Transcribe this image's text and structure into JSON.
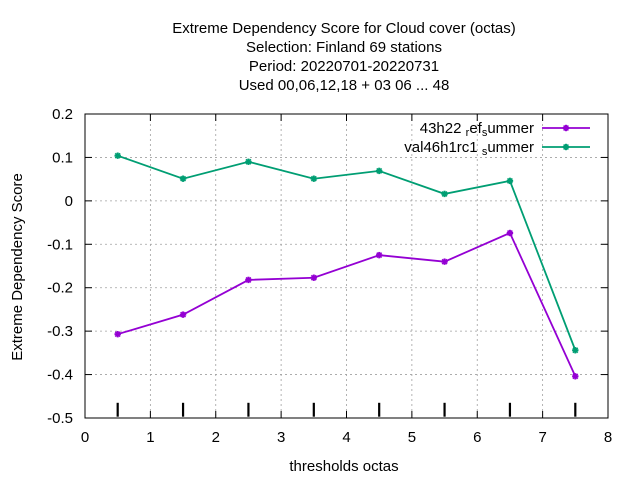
{
  "chart_data": {
    "type": "line",
    "title_lines": [
      "Extreme Dependency Score  for Cloud cover (octas)",
      "Selection: Finland     69 stations",
      "Period: 20220701-20220731",
      "Used  00,06,12,18  + 03 06 ... 48"
    ],
    "xlabel": "thresholds octas",
    "ylabel": "Extreme Dependency Score",
    "xlim": [
      0,
      8
    ],
    "ylim": [
      -0.5,
      0.2
    ],
    "x_ticks": [
      "0",
      "1",
      "2",
      "3",
      "4",
      "5",
      "6",
      "7",
      "8"
    ],
    "y_ticks": [
      "-0.5",
      "-0.4",
      "-0.3",
      "-0.2",
      "-0.1",
      "0",
      "0.1",
      "0.2"
    ],
    "grid": true,
    "legend_position": "top-right",
    "threshold_markers_x": [
      0.5,
      1.5,
      2.5,
      3.5,
      4.5,
      5.5,
      6.5,
      7.5
    ],
    "x": [
      0.5,
      1.5,
      2.5,
      3.5,
      4.5,
      5.5,
      6.5,
      7.5
    ],
    "series": [
      {
        "name": "43h22 ref summer",
        "legend_parts": [
          {
            "text": "43h22 ",
            "sub": false
          },
          {
            "text": "r",
            "sub": true
          },
          {
            "text": "ef",
            "sub": false
          },
          {
            "text": "s",
            "sub": true
          },
          {
            "text": "ummer",
            "sub": false
          }
        ],
        "color": "#9400d3",
        "values": [
          -0.307,
          -0.262,
          -0.182,
          -0.177,
          -0.125,
          -0.14,
          -0.074,
          -0.404
        ]
      },
      {
        "name": "val46h1rc1 summer",
        "legend_parts": [
          {
            "text": "val46h1rc1 ",
            "sub": false
          },
          {
            "text": "s",
            "sub": true
          },
          {
            "text": "ummer",
            "sub": false
          }
        ],
        "color": "#009e73",
        "values": [
          0.104,
          0.051,
          0.09,
          0.051,
          0.069,
          0.016,
          0.046,
          -0.344
        ]
      }
    ]
  }
}
